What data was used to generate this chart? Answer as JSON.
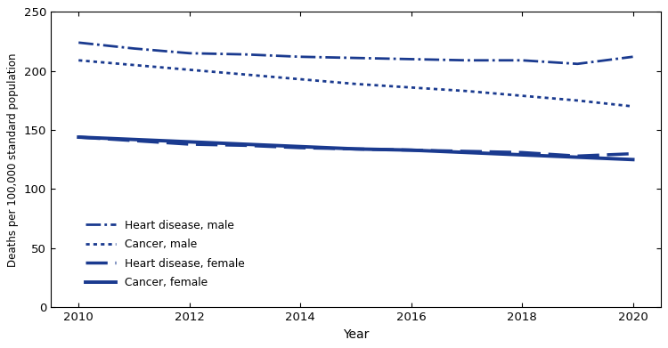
{
  "years": [
    2010,
    2011,
    2012,
    2013,
    2014,
    2015,
    2016,
    2017,
    2018,
    2019,
    2020
  ],
  "heart_disease_male": [
    224,
    219,
    215,
    214,
    212,
    211,
    210,
    209,
    209,
    206,
    212
  ],
  "cancer_male": [
    209,
    205,
    201,
    197,
    193,
    189,
    186,
    183,
    179,
    175,
    170
  ],
  "heart_disease_female": [
    144,
    141,
    138,
    137,
    135,
    134,
    133,
    132,
    131,
    128,
    130
  ],
  "cancer_female": [
    144,
    142,
    140,
    138,
    136,
    134,
    133,
    131,
    129,
    127,
    125
  ],
  "color": "#1a3a8f",
  "ylabel": "Deaths per 100,000 standard population",
  "xlabel": "Year",
  "ylim": [
    0,
    250
  ],
  "yticks": [
    0,
    50,
    100,
    150,
    200,
    250
  ],
  "xlim": [
    2009.5,
    2020.5
  ],
  "xticks": [
    2010,
    2012,
    2014,
    2016,
    2018,
    2020
  ],
  "legend_labels": [
    "Heart disease, male",
    "Cancer, male",
    "Heart disease, female",
    "Cancer, female"
  ],
  "lw_dashdot": 2.0,
  "lw_dotted": 2.0,
  "lw_dashed": 2.5,
  "lw_solid": 2.8
}
